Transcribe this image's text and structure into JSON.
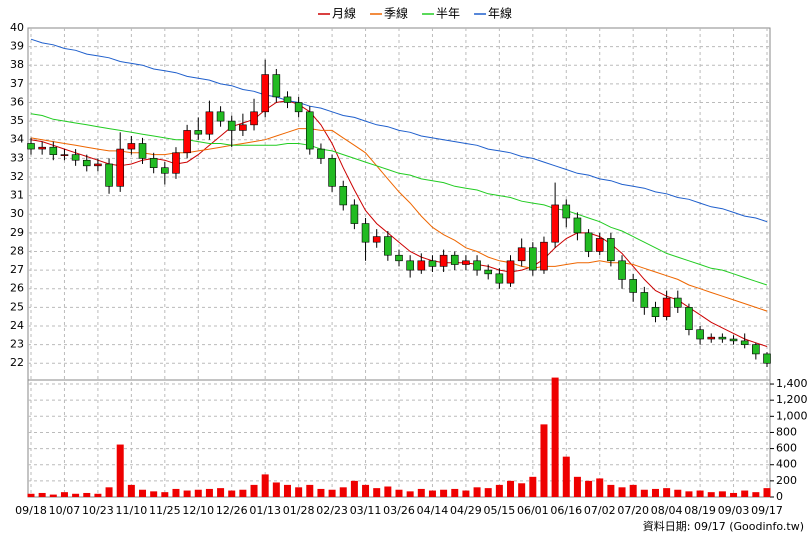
{
  "chart_data": {
    "type": "candlestick",
    "footnote": "資料日期: 09/17 (Goodinfo.tw)",
    "categories": [
      "09/18",
      null,
      null,
      "10/07",
      null,
      null,
      "10/23",
      null,
      null,
      "11/10",
      null,
      null,
      "11/25",
      null,
      null,
      "12/10",
      null,
      null,
      "12/26",
      null,
      null,
      "01/13",
      null,
      null,
      "01/28",
      null,
      null,
      "02/23",
      null,
      null,
      "03/11",
      null,
      null,
      "03/26",
      null,
      null,
      "04/14",
      null,
      null,
      "04/29",
      null,
      null,
      "05/15",
      null,
      null,
      "06/01",
      null,
      null,
      "06/16",
      null,
      null,
      "07/02",
      null,
      null,
      "07/20",
      null,
      null,
      "08/04",
      null,
      null,
      "08/19",
      null,
      null,
      "09/03",
      null,
      null,
      "09/17"
    ],
    "open": [
      33.8,
      33.5,
      33.6,
      33.2,
      33.2,
      32.9,
      32.6,
      32.7,
      31.5,
      33.5,
      33.8,
      33.0,
      32.5,
      32.2,
      33.3,
      34.5,
      34.3,
      35.5,
      35.0,
      34.5,
      34.8,
      35.5,
      37.5,
      36.3,
      36.0,
      35.5,
      33.5,
      33.0,
      31.5,
      30.5,
      29.5,
      28.5,
      28.8,
      27.8,
      27.5,
      27.0,
      27.5,
      27.2,
      27.8,
      27.3,
      27.5,
      27.0,
      26.8,
      26.3,
      27.5,
      28.2,
      27.0,
      28.5,
      30.5,
      29.8,
      29.0,
      28.0,
      28.7,
      27.5,
      26.5,
      25.8,
      25.0,
      24.5,
      25.5,
      25.0,
      23.8,
      23.3,
      23.4,
      23.3,
      23.2,
      23.0,
      22.5
    ],
    "high": [
      34.1,
      33.9,
      33.9,
      33.5,
      33.5,
      33.2,
      33.0,
      33.0,
      34.4,
      34.2,
      34.1,
      33.3,
      32.8,
      33.6,
      34.8,
      35.2,
      36.1,
      35.8,
      35.3,
      35.4,
      36.2,
      38.3,
      37.8,
      36.6,
      36.3,
      35.8,
      33.8,
      33.2,
      31.8,
      30.8,
      29.8,
      29.2,
      29.1,
      28.1,
      27.8,
      27.9,
      27.8,
      28.1,
      28.0,
      27.8,
      27.8,
      27.3,
      27.1,
      27.8,
      28.7,
      28.5,
      28.8,
      31.7,
      30.8,
      30.1,
      29.2,
      29.0,
      29.0,
      27.8,
      26.8,
      26.1,
      25.3,
      25.9,
      25.9,
      25.2,
      24.0,
      23.6,
      23.6,
      23.5,
      23.6,
      23.1,
      22.6
    ],
    "low": [
      33.2,
      33.2,
      32.9,
      32.9,
      32.6,
      32.3,
      32.3,
      31.1,
      31.2,
      33.2,
      32.7,
      32.2,
      31.6,
      31.9,
      33.0,
      34.0,
      34.0,
      34.7,
      33.6,
      34.2,
      34.5,
      35.2,
      36.0,
      35.7,
      35.2,
      33.2,
      32.7,
      31.2,
      30.2,
      29.2,
      27.5,
      28.2,
      27.5,
      27.2,
      26.6,
      26.8,
      26.9,
      26.9,
      27.0,
      27.0,
      26.7,
      26.5,
      26.0,
      26.1,
      27.2,
      26.7,
      26.8,
      28.2,
      29.3,
      28.6,
      27.7,
      27.8,
      27.2,
      26.0,
      25.3,
      24.6,
      24.2,
      24.3,
      24.7,
      23.5,
      23.0,
      23.1,
      23.1,
      23.0,
      22.8,
      22.2,
      21.8
    ],
    "close": [
      33.5,
      33.6,
      33.2,
      33.2,
      32.9,
      32.6,
      32.7,
      31.5,
      33.5,
      33.8,
      33.0,
      32.5,
      32.2,
      33.3,
      34.5,
      34.3,
      35.5,
      35.0,
      34.5,
      34.8,
      35.5,
      37.5,
      36.3,
      36.0,
      35.5,
      33.5,
      33.0,
      31.5,
      30.5,
      29.5,
      28.5,
      28.8,
      27.8,
      27.5,
      27.0,
      27.5,
      27.2,
      27.8,
      27.3,
      27.5,
      27.0,
      26.8,
      26.3,
      27.5,
      28.2,
      27.0,
      28.5,
      30.5,
      29.8,
      29.0,
      28.0,
      28.7,
      27.5,
      26.5,
      25.8,
      25.0,
      24.5,
      25.5,
      25.0,
      23.8,
      23.3,
      23.4,
      23.3,
      23.2,
      23.0,
      22.5,
      22.0
    ],
    "volume": [
      40,
      50,
      30,
      60,
      40,
      50,
      40,
      120,
      650,
      150,
      90,
      70,
      60,
      100,
      80,
      90,
      100,
      110,
      80,
      90,
      150,
      280,
      180,
      150,
      120,
      150,
      100,
      90,
      120,
      200,
      150,
      110,
      130,
      90,
      70,
      100,
      80,
      90,
      100,
      80,
      120,
      110,
      150,
      200,
      170,
      250,
      900,
      1480,
      500,
      250,
      200,
      230,
      150,
      120,
      150,
      90,
      100,
      110,
      90,
      70,
      80,
      60,
      70,
      50,
      80,
      60,
      110
    ],
    "up_color": "#ff0000",
    "down_color": "#22bb22",
    "volume_color": "#ee0000",
    "series": [
      {
        "name": "月線",
        "color": "#cc0000",
        "values": [
          34.0,
          33.9,
          33.7,
          33.5,
          33.3,
          33.1,
          32.9,
          32.7,
          32.6,
          32.7,
          32.9,
          33.0,
          32.9,
          32.7,
          32.8,
          33.2,
          33.7,
          34.2,
          34.7,
          34.9,
          35.1,
          35.6,
          36.0,
          36.1,
          35.9,
          35.5,
          34.8,
          33.8,
          32.5,
          31.3,
          30.2,
          29.5,
          29.0,
          28.5,
          28.0,
          27.7,
          27.5,
          27.4,
          27.4,
          27.4,
          27.3,
          27.2,
          27.0,
          26.9,
          27.0,
          27.2,
          27.6,
          28.2,
          28.7,
          29.0,
          29.0,
          28.8,
          28.4,
          27.9,
          27.2,
          26.5,
          25.9,
          25.6,
          25.4,
          25.0,
          24.6,
          24.2,
          23.9,
          23.6,
          23.3,
          23.1,
          22.9
        ]
      },
      {
        "name": "季線",
        "color": "#ee6600",
        "values": [
          34.1,
          34.0,
          33.9,
          33.8,
          33.7,
          33.6,
          33.5,
          33.4,
          33.4,
          33.3,
          33.3,
          33.2,
          33.2,
          33.3,
          33.3,
          33.4,
          33.5,
          33.6,
          33.7,
          33.8,
          33.9,
          34.0,
          34.2,
          34.4,
          34.6,
          34.6,
          34.5,
          34.5,
          34.1,
          33.7,
          33.3,
          32.6,
          31.9,
          31.2,
          30.6,
          29.9,
          29.3,
          28.9,
          28.6,
          28.2,
          28.0,
          27.7,
          27.5,
          27.4,
          27.2,
          27.1,
          27.2,
          27.2,
          27.3,
          27.4,
          27.4,
          27.5,
          27.4,
          27.4,
          27.3,
          27.1,
          26.9,
          26.7,
          26.5,
          26.2,
          26.0,
          25.8,
          25.6,
          25.4,
          25.2,
          25.0,
          24.8
        ]
      },
      {
        "name": "半年",
        "color": "#22cc22",
        "values": [
          35.4,
          35.3,
          35.1,
          35.0,
          34.9,
          34.8,
          34.7,
          34.6,
          34.5,
          34.4,
          34.3,
          34.2,
          34.1,
          34.0,
          34.0,
          33.9,
          33.8,
          33.8,
          33.7,
          33.7,
          33.7,
          33.7,
          33.7,
          33.8,
          33.8,
          33.7,
          33.5,
          33.4,
          33.2,
          33.0,
          32.8,
          32.6,
          32.4,
          32.2,
          32.1,
          31.9,
          31.8,
          31.7,
          31.5,
          31.4,
          31.3,
          31.1,
          31.0,
          30.9,
          30.7,
          30.6,
          30.5,
          30.3,
          30.2,
          30.0,
          29.8,
          29.6,
          29.3,
          29.1,
          28.8,
          28.5,
          28.2,
          27.9,
          27.7,
          27.5,
          27.3,
          27.1,
          27.0,
          26.8,
          26.6,
          26.4,
          26.2
        ]
      },
      {
        "name": "年線",
        "color": "#1f5fcc",
        "values": [
          39.4,
          39.2,
          39.1,
          38.9,
          38.8,
          38.6,
          38.5,
          38.4,
          38.2,
          38.1,
          38.0,
          37.8,
          37.7,
          37.6,
          37.4,
          37.3,
          37.2,
          37.0,
          36.9,
          36.7,
          36.6,
          36.4,
          36.3,
          36.1,
          36.0,
          35.8,
          35.7,
          35.5,
          35.3,
          35.2,
          35.0,
          34.8,
          34.7,
          34.5,
          34.4,
          34.2,
          34.1,
          34.0,
          33.9,
          33.8,
          33.7,
          33.5,
          33.4,
          33.3,
          33.1,
          33.0,
          32.8,
          32.6,
          32.4,
          32.2,
          32.1,
          31.9,
          31.8,
          31.6,
          31.5,
          31.4,
          31.2,
          31.1,
          30.9,
          30.8,
          30.6,
          30.4,
          30.3,
          30.1,
          29.9,
          29.8,
          29.6
        ]
      }
    ],
    "ylim": [
      21.1,
      40
    ],
    "yticks": [
      22,
      23,
      24,
      25,
      26,
      27,
      28,
      29,
      30,
      31,
      32,
      33,
      34,
      35,
      36,
      37,
      38,
      39,
      40
    ],
    "y2lim": [
      0,
      1450
    ],
    "y2ticks": [
      0,
      200,
      400,
      600,
      800,
      {
        "value": 1000,
        "label": "1,000"
      },
      {
        "value": 1200,
        "label": "1,200"
      },
      {
        "value": 1400,
        "label": "1,400"
      }
    ],
    "grid": true
  }
}
